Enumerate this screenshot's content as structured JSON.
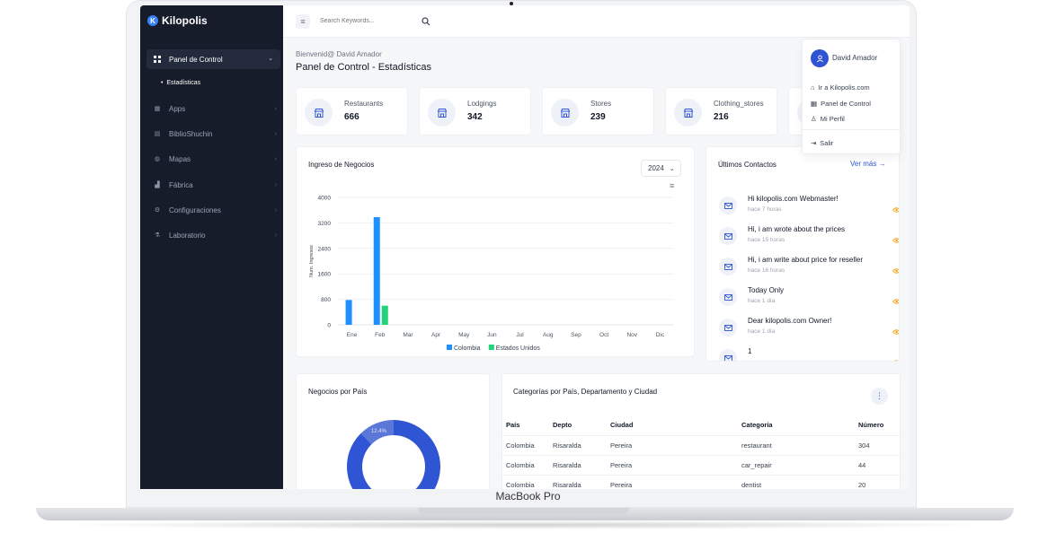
{
  "device": {
    "label": "MacBook Pro"
  },
  "brand": {
    "mark": "K",
    "name": "Kilopolis"
  },
  "sidebar": {
    "active": {
      "label": "Panel de Control",
      "icon": "dashboard-icon"
    },
    "sub_item": "Estadísticas",
    "items": [
      {
        "label": "Apps",
        "icon": "apps-icon"
      },
      {
        "label": "BiblioShuchin",
        "icon": "library-icon"
      },
      {
        "label": "Mapas",
        "icon": "globe-icon"
      },
      {
        "label": "Fábrica",
        "icon": "factory-icon"
      },
      {
        "label": "Configuraciones",
        "icon": "settings-icon"
      },
      {
        "label": "Laboratorio",
        "icon": "flask-icon"
      }
    ]
  },
  "topbar": {
    "search_placeholder": "Search Keywords..."
  },
  "header": {
    "welcome": "Bienvenid@ David Amador",
    "title": "Panel de Control - Estadísticas"
  },
  "stats": [
    {
      "label": "Restaurants",
      "value": "666"
    },
    {
      "label": "Lodgings",
      "value": "342"
    },
    {
      "label": "Stores",
      "value": "239"
    },
    {
      "label": "Clothing_stores",
      "value": "216"
    }
  ],
  "chart_card": {
    "title": "Ingreso de Negocios",
    "year": "2024"
  },
  "chart_data": {
    "type": "bar",
    "categories": [
      "Ene",
      "Feb",
      "Mar",
      "Apr",
      "May",
      "Jun",
      "Jul",
      "Aug",
      "Sep",
      "Oct",
      "Nov",
      "Dic"
    ],
    "series": [
      {
        "name": "Colombia",
        "color": "#1e90ff",
        "values": [
          780,
          3380,
          0,
          0,
          0,
          0,
          0,
          0,
          0,
          0,
          0,
          0
        ]
      },
      {
        "name": "Estados Unidos",
        "color": "#22d37a",
        "values": [
          0,
          600,
          0,
          0,
          0,
          0,
          0,
          0,
          0,
          0,
          0,
          0
        ]
      }
    ],
    "ylabel": "Num. Ingresos",
    "ylim": [
      0,
      4000
    ],
    "yticks": [
      "0",
      "800",
      "1600",
      "2400",
      "3200",
      "4000"
    ],
    "legend": "bottom"
  },
  "contacts": {
    "title": "Últimos Contactos",
    "see_more": "Ver más",
    "items": [
      {
        "message": "Hi kilopolis.com Webmaster!",
        "time": "hace 7 horas"
      },
      {
        "message": "Hi, i am wrote about the prices",
        "time": "hace 15 horas"
      },
      {
        "message": "Hi, i am write about price for reseller",
        "time": "hace 16 horas"
      },
      {
        "message": "Today Only",
        "time": "hace 1 día"
      },
      {
        "message": "Dear kilopolis.com Owner!",
        "time": "hace 1 día"
      },
      {
        "message": "1",
        "time": ""
      }
    ]
  },
  "user_menu": {
    "name": "David Amador",
    "items": [
      {
        "label": "Ir a Kilopolis.com",
        "icon": "home-icon"
      },
      {
        "label": "Panel de Control",
        "icon": "dashboard-icon"
      },
      {
        "label": "Mi Perfil",
        "icon": "user-icon"
      },
      {
        "label": "Salir",
        "icon": "logout-icon"
      }
    ]
  },
  "donut_card": {
    "title": "Negocios por País",
    "slices": [
      {
        "label": "12.4%",
        "value": 12.4,
        "color": "#5b78d9"
      },
      {
        "label": "",
        "value": 87.6,
        "color": "#2f55d4"
      }
    ]
  },
  "categories_card": {
    "title": "Categorías por País, Departamento y Ciudad",
    "columns": [
      "País",
      "Depto",
      "Ciudad",
      "Categoría",
      "Número"
    ],
    "rows": [
      [
        "Colombia",
        "Risaralda",
        "Pereira",
        "restaurant",
        "304"
      ],
      [
        "Colombia",
        "Risaralda",
        "Pereira",
        "car_repair",
        "44"
      ],
      [
        "Colombia",
        "Risaralda",
        "Pereira",
        "dentist",
        "20"
      ]
    ]
  }
}
